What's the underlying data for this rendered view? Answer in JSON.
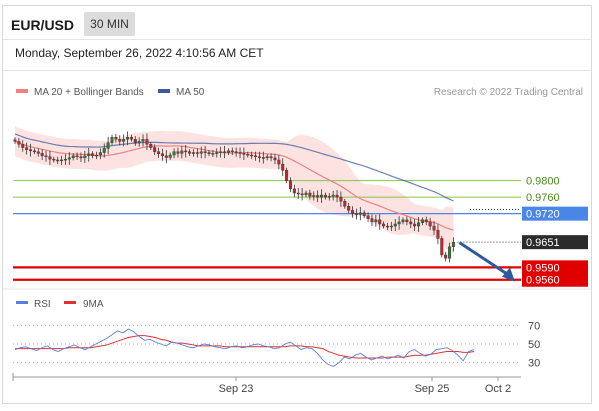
{
  "header": {
    "symbol": "EUR/USD",
    "timeframe": "30 MIN",
    "datetime": "Monday, September 26, 2022 4:10:56 AM CET"
  },
  "legend": {
    "ma20_label": "MA 20 + Bollinger Bands",
    "ma50_label": "MA 50",
    "credit": "Research © 2022 Trading Central",
    "rsi_label": "RSI",
    "ma9_label": "9MA"
  },
  "colors": {
    "ma20": "#f08080",
    "bollinger_band": "#fcd8d8",
    "ma50": "#3a5a9c",
    "candle_up": "#2e7d32",
    "candle_down": "#c62828",
    "support_line": "#e00000",
    "pivot_line": "#4a86e8",
    "resistance_line": "#8bc34a",
    "rsi": "#5b7fe0",
    "rsi_ma": "#e03030"
  },
  "chart_data": [
    {
      "type": "candlestick",
      "title": "EUR/USD 30 MIN",
      "ylim": [
        0.954,
        1.0
      ],
      "x_ticks": [
        "Sep 23",
        "Sep 25",
        "Oct 2"
      ],
      "levels": [
        {
          "value": 0.98,
          "label": "0.9800",
          "kind": "resistance"
        },
        {
          "value": 0.976,
          "label": "0.9760",
          "kind": "resistance"
        },
        {
          "value": 0.972,
          "label": "0.9720",
          "kind": "pivot"
        },
        {
          "value": 0.9651,
          "label": "0.9651",
          "kind": "last"
        },
        {
          "value": 0.959,
          "label": "0.9590",
          "kind": "support"
        },
        {
          "value": 0.956,
          "label": "0.9560",
          "kind": "support"
        }
      ],
      "forecast_arrow": {
        "from": 0.965,
        "to": 0.9565,
        "direction": "down"
      },
      "close": [
        0.9895,
        0.9888,
        0.988,
        0.9875,
        0.9872,
        0.987,
        0.9866,
        0.986,
        0.9858,
        0.9852,
        0.985,
        0.9848,
        0.985,
        0.9852,
        0.9855,
        0.986,
        0.9858,
        0.9855,
        0.986,
        0.9865,
        0.986,
        0.9862,
        0.9868,
        0.9878,
        0.9892,
        0.9905,
        0.99,
        0.9895,
        0.99,
        0.9905,
        0.99,
        0.9892,
        0.9895,
        0.99,
        0.9888,
        0.988,
        0.987,
        0.9865,
        0.986,
        0.9856,
        0.9862,
        0.987,
        0.9866,
        0.9872,
        0.987,
        0.9866,
        0.9868,
        0.9866,
        0.987,
        0.9868,
        0.9865,
        0.9866,
        0.9868,
        0.987,
        0.9868,
        0.9872,
        0.987,
        0.9868,
        0.9866,
        0.9864,
        0.9862,
        0.986,
        0.9858,
        0.9856,
        0.9855,
        0.9858,
        0.9855,
        0.985,
        0.984,
        0.9825,
        0.98,
        0.978,
        0.977,
        0.9768,
        0.9766,
        0.977,
        0.9762,
        0.9764,
        0.976,
        0.9765,
        0.976,
        0.9762,
        0.9765,
        0.976,
        0.975,
        0.9738,
        0.9728,
        0.972,
        0.9718,
        0.9722,
        0.9715,
        0.9708,
        0.97,
        0.9705,
        0.9695,
        0.969,
        0.9688,
        0.969,
        0.9695,
        0.97,
        0.9705,
        0.97,
        0.9695,
        0.969,
        0.9698,
        0.9705,
        0.97,
        0.969,
        0.968,
        0.966,
        0.962,
        0.9612,
        0.964,
        0.9651
      ]
    },
    {
      "type": "line",
      "title": "RSI",
      "ylim": [
        20,
        80
      ],
      "y_ticks": [
        30,
        50,
        70
      ],
      "series": [
        {
          "name": "RSI",
          "values": [
            44,
            46,
            47,
            45,
            43,
            46,
            48,
            44,
            42,
            45,
            47,
            49,
            46,
            44,
            47,
            50,
            53,
            56,
            60,
            64,
            62,
            66,
            63,
            58,
            54,
            55,
            52,
            50,
            48,
            52,
            51,
            49,
            47,
            46,
            48,
            50,
            49,
            47,
            46,
            45,
            47,
            48,
            46,
            47,
            49,
            50,
            48,
            47,
            45,
            46,
            50,
            52,
            48,
            44,
            46,
            45,
            40,
            33,
            28,
            26,
            30,
            36,
            34,
            38,
            40,
            36,
            33,
            35,
            37,
            34,
            36,
            38,
            35,
            42,
            44,
            40,
            37,
            39,
            44,
            45,
            46,
            43,
            38,
            32,
            42,
            44
          ]
        },
        {
          "name": "9MA",
          "values": [
            45,
            45,
            45,
            45,
            45,
            45,
            45,
            45,
            45,
            45,
            46,
            46,
            46,
            46,
            46,
            47,
            48,
            49,
            51,
            53,
            55,
            57,
            58,
            59,
            59,
            58,
            57,
            55,
            54,
            52,
            51,
            51,
            50,
            49,
            48,
            48,
            48,
            48,
            48,
            47,
            47,
            47,
            47,
            47,
            47,
            47,
            47,
            47,
            47,
            47,
            47,
            48,
            48,
            48,
            47,
            47,
            46,
            45,
            42,
            40,
            38,
            37,
            36,
            35,
            35,
            35,
            35,
            35,
            35,
            36,
            36,
            36,
            36,
            37,
            38,
            38,
            38,
            39,
            40,
            41,
            42,
            42,
            42,
            41,
            41,
            42
          ]
        }
      ]
    }
  ]
}
